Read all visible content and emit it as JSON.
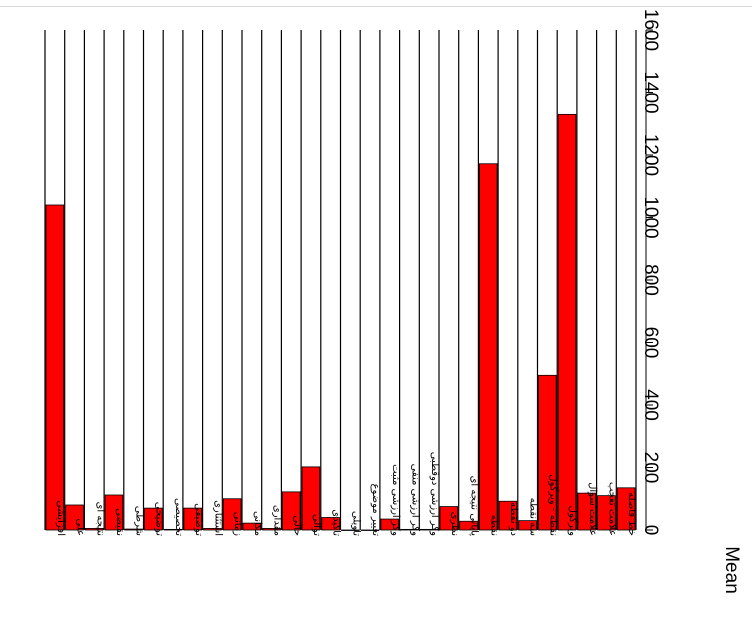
{
  "chart_data": {
    "type": "bar",
    "orientation": "rotated-90",
    "categories": [
      "افزایشی",
      "علی",
      "نتیجه ای",
      "نقیضی",
      "شرطی",
      "توضیحی",
      "تخصیصی",
      "توصیفی",
      "استثناری",
      "زمانی",
      "مکانی",
      "مقداری",
      "حالی",
      "توالی",
      "تاکیدی",
      "تاویلی",
      "تغییر موضوع",
      "وکر ارزشی مثبت",
      "وکر ارزشی منفی",
      "وکر ارزشی دوقطبی",
      "نظری",
      "پایانی نتیجه ای",
      "نقطه",
      "دو نقطه",
      "سه نقطه",
      "نقطه - ویرگول",
      "ویرگول",
      "علامت سوال",
      "علامت تعجب",
      "خط فاصله"
    ],
    "values": [
      1040,
      80,
      5,
      112,
      3,
      70,
      2,
      70,
      5,
      100,
      22,
      5,
      122,
      202,
      40,
      0,
      0,
      35,
      2,
      2,
      75,
      28,
      1172,
      92,
      30,
      495,
      1330,
      118,
      110,
      135
    ],
    "title": "",
    "xlabel": "",
    "ylabel": "Mean",
    "ylim": [
      0,
      1600
    ],
    "yticks": [
      "0",
      "200",
      "400",
      "600",
      "800",
      "1000",
      "1200",
      "1400",
      "1600"
    ],
    "bar_color": "#ff0000",
    "background_panel_color": "#ffffff",
    "grid": false,
    "legend": "none"
  }
}
